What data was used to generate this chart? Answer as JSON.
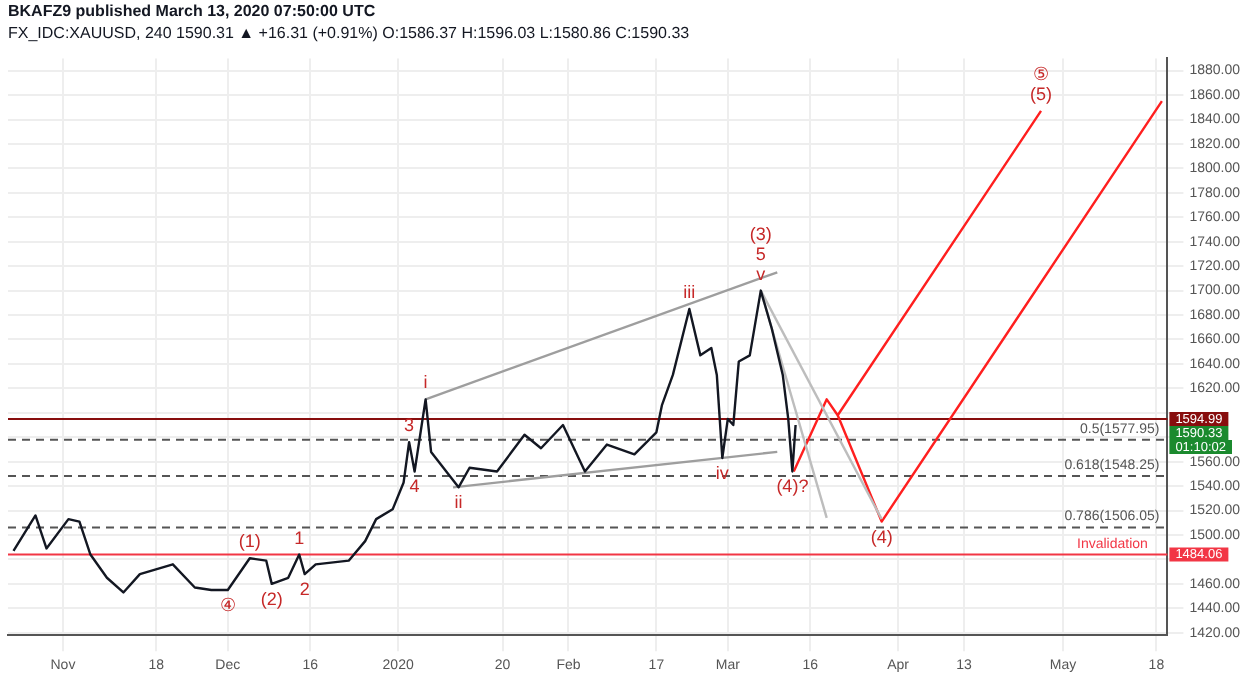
{
  "chart_data": {
    "type": "line",
    "title": "BKAFZ9 published March 13, 2020 07:50:00 UTC",
    "subtitle": "FX_IDC:XAUUSD, 240 1590.31 ▲ +16.31 (+0.91%) O:1586.37 H:1596.03 L:1580.86 C:1590.33",
    "xlim": [
      "2019-10-22",
      "2020-05-20"
    ],
    "xticks": [
      {
        "value": "2019-11-01",
        "label": "Nov"
      },
      {
        "value": "2019-11-18",
        "label": "18"
      },
      {
        "value": "2019-12-01",
        "label": "Dec"
      },
      {
        "value": "2019-12-16",
        "label": "16"
      },
      {
        "value": "2020-01-01",
        "label": "2020"
      },
      {
        "value": "2020-01-20",
        "label": "20"
      },
      {
        "value": "2020-02-01",
        "label": "Feb"
      },
      {
        "value": "2020-02-17",
        "label": "17"
      },
      {
        "value": "2020-03-01",
        "label": "Mar"
      },
      {
        "value": "2020-03-16",
        "label": "16"
      },
      {
        "value": "2020-04-01",
        "label": "Apr"
      },
      {
        "value": "2020-04-13",
        "label": "13"
      },
      {
        "value": "2020-05-01",
        "label": "May"
      },
      {
        "value": "2020-05-18",
        "label": "18"
      }
    ],
    "ylim": [
      1418,
      1890
    ],
    "yticks": [
      {
        "value": 1420,
        "label": "1420.00"
      },
      {
        "value": 1440,
        "label": "1440.00"
      },
      {
        "value": 1460,
        "label": "1460.00"
      },
      {
        "value": 1480,
        "label": null
      },
      {
        "value": 1500,
        "label": "1500.00"
      },
      {
        "value": 1520,
        "label": "1520.00"
      },
      {
        "value": 1540,
        "label": "1540.00"
      },
      {
        "value": 1560,
        "label": "1560.00"
      },
      {
        "value": 1580,
        "label": null
      },
      {
        "value": 1600,
        "label": null
      },
      {
        "value": 1620,
        "label": "1620.00"
      },
      {
        "value": 1640,
        "label": "1640.00"
      },
      {
        "value": 1660,
        "label": "1660.00"
      },
      {
        "value": 1680,
        "label": "1680.00"
      },
      {
        "value": 1700,
        "label": "1700.00"
      },
      {
        "value": 1720,
        "label": "1720.00"
      },
      {
        "value": 1740,
        "label": "1740.00"
      },
      {
        "value": 1760,
        "label": "1760.00"
      },
      {
        "value": 1780,
        "label": "1780.00"
      },
      {
        "value": 1800,
        "label": "1800.00"
      },
      {
        "value": 1820,
        "label": "1820.00"
      },
      {
        "value": 1840,
        "label": "1840.00"
      },
      {
        "value": 1860,
        "label": "1860.00"
      },
      {
        "value": 1880,
        "label": "1880.00"
      }
    ],
    "grid": true,
    "marker": "none",
    "line_style": "solid",
    "series": [
      {
        "color": "#131722",
        "x": [
          "2019-10-23",
          "2019-10-27",
          "2019-10-29",
          "2019-11-02",
          "2019-11-04",
          "2019-11-06",
          "2019-11-09",
          "2019-11-12",
          "2019-11-15",
          "2019-11-21",
          "2019-11-25",
          "2019-11-28",
          "2019-12-01",
          "2019-12-05",
          "2019-12-08",
          "2019-12-09",
          "2019-12-12",
          "2019-12-14",
          "2019-12-15",
          "2019-12-17",
          "2019-12-23",
          "2019-12-26",
          "2019-12-28",
          "2019-12-31",
          "2020-01-02",
          "2020-01-03",
          "2020-01-04",
          "2020-01-06",
          "2020-01-07",
          "2020-01-12",
          "2020-01-14",
          "2020-01-19",
          "2020-01-24",
          "2020-01-27",
          "2020-01-31",
          "2020-02-04",
          "2020-02-08",
          "2020-02-13",
          "2020-02-17",
          "2020-02-18",
          "2020-02-20",
          "2020-02-23",
          "2020-02-25",
          "2020-02-27",
          "2020-02-28",
          "2020-02-29",
          "2020-03-01",
          "2020-03-02",
          "2020-03-03",
          "2020-03-05",
          "2020-03-07",
          "2020-03-09",
          "2020-03-11",
          "2020-03-12",
          "2020-03-12T18:00",
          "2020-03-13T08:00"
        ],
        "values": [
          1487,
          1516,
          1489,
          1513,
          1511,
          1484,
          1465,
          1453,
          1468,
          1476,
          1457,
          1455,
          1455,
          1481,
          1479,
          1460,
          1465,
          1484,
          1468,
          1476,
          1479,
          1495,
          1513,
          1521,
          1543,
          1576,
          1552,
          1611,
          1568,
          1539,
          1555,
          1552,
          1582,
          1571,
          1590,
          1552,
          1574,
          1566,
          1584,
          1606,
          1631,
          1685,
          1647,
          1653,
          1631,
          1563,
          1595,
          1590,
          1642,
          1647,
          1700,
          1669,
          1631,
          1595,
          1552,
          1590
        ]
      },
      {
        "color": "#9e9e9e",
        "x": [
          "2020-01-06",
          "2020-03-10"
        ],
        "values": [
          1611,
          1715
        ]
      },
      {
        "color": "#9e9e9e",
        "x": [
          "2020-01-11",
          "2020-03-10"
        ],
        "values": [
          1539,
          1568
        ]
      },
      {
        "color": "#bdbdbd",
        "x": [
          "2020-03-07",
          "2020-03-19"
        ],
        "values": [
          1700,
          1514
        ]
      },
      {
        "color": "#bdbdbd",
        "x": [
          "2020-03-07",
          "2020-03-29"
        ],
        "values": [
          1700,
          1513
        ]
      },
      {
        "color": "#ff1f1f",
        "x": [
          "2020-03-13",
          "2020-03-19",
          "2020-03-21",
          "2020-04-27"
        ],
        "values": [
          1552,
          1611,
          1598,
          1847
        ]
      },
      {
        "color": "#ff1f1f",
        "x": [
          "2020-03-21",
          "2020-03-29",
          "2020-05-19"
        ],
        "values": [
          1598,
          1511,
          1855
        ]
      }
    ],
    "ref_lines": [
      {
        "axis": "y",
        "value": 1594.99,
        "label": "1594.99",
        "color": "#880e0e",
        "line_style": "solid"
      },
      {
        "axis": "y",
        "value": 1577.95,
        "label": "0.5(1577.95)",
        "color": "#555555",
        "line_style": "dashed"
      },
      {
        "axis": "y",
        "value": 1548.25,
        "label": "0.618(1548.25)",
        "color": "#555555",
        "line_style": "dashed"
      },
      {
        "axis": "y",
        "value": 1506.05,
        "label": "0.786(1506.05)",
        "color": "#555555",
        "line_style": "dashed"
      },
      {
        "axis": "y",
        "value": 1484.06,
        "label": "1484.06",
        "color": "#f23645",
        "line_style": "solid"
      }
    ],
    "annotations": [
      {
        "text": "④",
        "x": "2019-12-01",
        "y": 1455
      },
      {
        "text": "(1)",
        "x": "2019-12-05",
        "y": 1481
      },
      {
        "text": "(2)",
        "x": "2019-12-09",
        "y": 1460
      },
      {
        "text": "1",
        "x": "2019-12-14",
        "y": 1484
      },
      {
        "text": "2",
        "x": "2019-12-15",
        "y": 1468
      },
      {
        "text": "3",
        "x": "2020-01-03",
        "y": 1576
      },
      {
        "text": "4",
        "x": "2020-01-04",
        "y": 1552
      },
      {
        "text": "i",
        "x": "2020-01-06",
        "y": 1611
      },
      {
        "text": "ii",
        "x": "2020-01-12",
        "y": 1539
      },
      {
        "text": "iii",
        "x": "2020-02-23",
        "y": 1685
      },
      {
        "text": "iv",
        "x": "2020-02-29",
        "y": 1563
      },
      {
        "text": "v",
        "x": "2020-03-07",
        "y": 1700
      },
      {
        "text": "5",
        "x": "2020-03-07",
        "y": 1700
      },
      {
        "text": "(3)",
        "x": "2020-03-07",
        "y": 1700
      },
      {
        "text": "(4)?",
        "x": "2020-03-12T18:00",
        "y": 1552
      },
      {
        "text": "(4)",
        "x": "2020-03-29",
        "y": 1511
      },
      {
        "text": "(5)",
        "x": "2020-04-27",
        "y": 1847
      },
      {
        "text": "⑤",
        "x": "2020-04-27",
        "y": 1847
      },
      {
        "text": "Invalidation",
        "x": "2020-05-10",
        "y": 1484.06
      },
      "1590.33",
      "01:10:02"
    ]
  }
}
